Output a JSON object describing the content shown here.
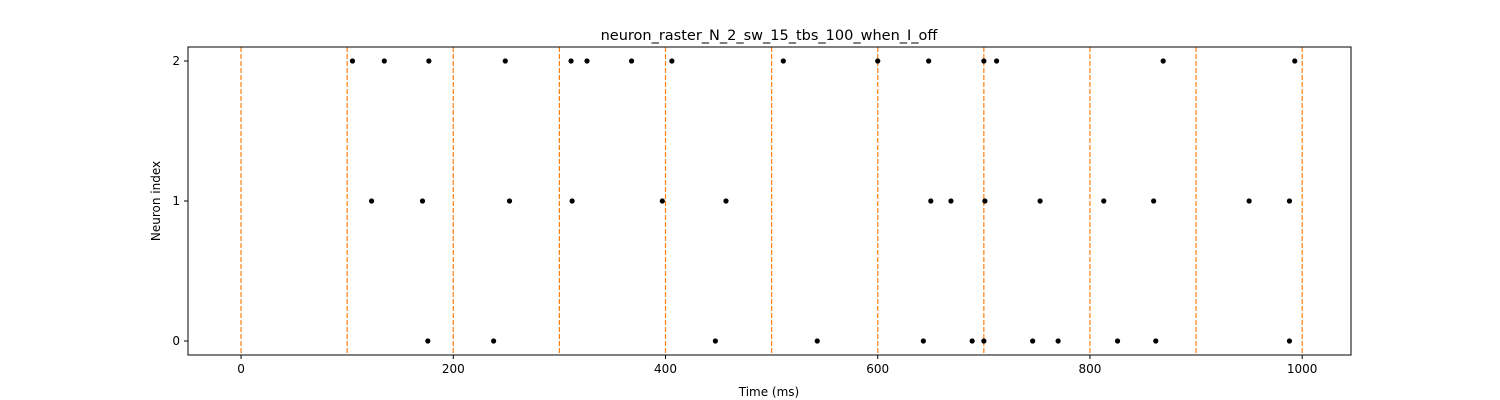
{
  "chart_data": {
    "type": "scatter",
    "title": "neuron_raster_N_2_sw_15_tbs_100_when_I_off",
    "xlabel": "Time (ms)",
    "ylabel": "Neuron index",
    "xlim": [
      -50,
      1046
    ],
    "ylim": [
      -0.1,
      2.1
    ],
    "xticks": [
      0,
      200,
      400,
      600,
      800,
      1000
    ],
    "yticks": [
      0,
      1,
      2
    ],
    "grid": false,
    "spike_color": "#000000",
    "vline_color": "#ff7f0e",
    "vlines": [
      0,
      100,
      200,
      300,
      400,
      500,
      600,
      700,
      800,
      900,
      1000
    ],
    "series": [
      {
        "neuron": 0,
        "times": [
          176,
          238,
          447,
          543,
          643,
          689,
          700,
          746,
          770,
          826,
          862,
          988
        ]
      },
      {
        "neuron": 1,
        "times": [
          123,
          171,
          253,
          312,
          397,
          457,
          650,
          669,
          701,
          753,
          813,
          860,
          950,
          988
        ]
      },
      {
        "neuron": 2,
        "times": [
          105,
          135,
          177,
          249,
          311,
          326,
          368,
          406,
          511,
          600,
          648,
          700,
          712,
          869,
          993
        ]
      }
    ]
  }
}
